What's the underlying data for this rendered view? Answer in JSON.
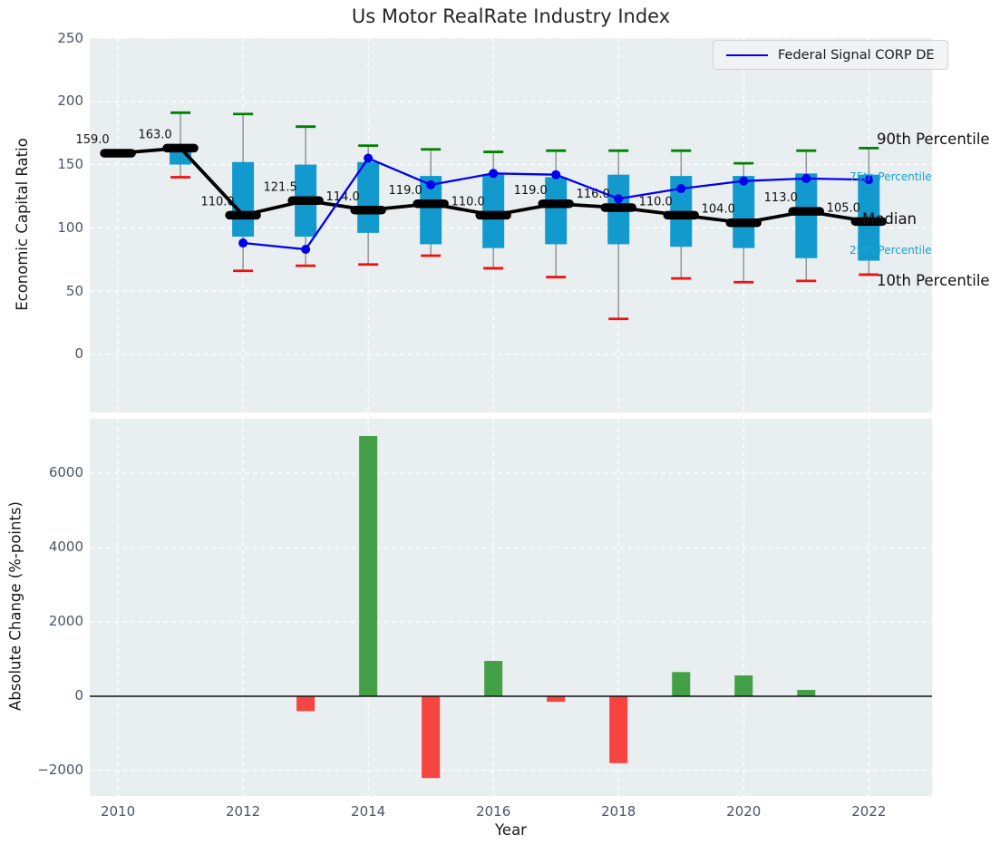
{
  "title": "Us Motor RealRate Industry Index",
  "legend": {
    "label": "Federal Signal CORP DE"
  },
  "colors": {
    "plot_bg": "#e9eef0",
    "grid": "#ffffff",
    "tick": "#4a5568",
    "box_fill": "#129ace",
    "whisker": "#7f7f7f",
    "cap_top": "#008000",
    "cap_bottom": "#ee1111",
    "median": "#000000",
    "company_line": "#0000ee",
    "bar_positive": "#43a047",
    "bar_negative": "#f64440",
    "percentile_label_small": "#17a2d6",
    "zero_line": "#111111"
  },
  "chart_data": [
    {
      "type": "box",
      "title": "Us Motor RealRate Industry Index",
      "ylabel": "Economic Capital Ratio",
      "ylim": [
        -46,
        250
      ],
      "yticks": [
        0,
        50,
        100,
        150,
        200,
        250
      ],
      "xlim": [
        2009.55,
        2023.01
      ],
      "grid_years": [
        2010,
        2012,
        2014,
        2016,
        2018,
        2020,
        2022
      ],
      "legend_entries": [
        "Federal Signal CORP DE"
      ],
      "years": [
        2010,
        2011,
        2012,
        2013,
        2014,
        2015,
        2016,
        2017,
        2018,
        2019,
        2020,
        2021,
        2022
      ],
      "p90": [
        161,
        191,
        190,
        180,
        165,
        162,
        160,
        161,
        161,
        161,
        151,
        161,
        163
      ],
      "q3": [
        160.5,
        165,
        152,
        150,
        152,
        141,
        142,
        140,
        142,
        141,
        141,
        143,
        142
      ],
      "median": [
        159.0,
        163.0,
        110.0,
        121.5,
        114.0,
        119.0,
        110.0,
        119.0,
        116.0,
        110.0,
        104.0,
        113.0,
        105.0
      ],
      "q1": [
        157.5,
        150,
        93,
        93,
        96,
        87,
        84,
        87,
        87,
        85,
        84,
        76,
        74
      ],
      "p10": [
        null,
        140,
        66,
        70,
        71,
        78,
        68,
        61,
        28,
        60,
        57,
        58,
        63
      ],
      "median_labels": [
        "159.0",
        "163.0",
        "110.0",
        "121.5",
        "114.0",
        "119.0",
        "110.0",
        "119.0",
        "116.0",
        "110.0",
        "104.0",
        "113.0",
        "105.0"
      ],
      "company": {
        "name": "Federal Signal CORP DE",
        "values": [
          null,
          null,
          88,
          83,
          155,
          134,
          143,
          142,
          123,
          131,
          137,
          139,
          138
        ]
      },
      "right_labels": [
        {
          "text": "90th Percentile",
          "value": 170,
          "style": "big",
          "x": 967
        },
        {
          "text": "75th Percentile",
          "value": 140,
          "style": "small",
          "x": 937
        },
        {
          "text": "Median",
          "value": 107,
          "style": "big",
          "x": 951
        },
        {
          "text": "25th Percentile",
          "value": 82,
          "style": "small",
          "x": 937
        },
        {
          "text": "10th Percentile",
          "value": 58,
          "style": "big",
          "x": 967
        }
      ]
    },
    {
      "type": "bar",
      "ylabel": "Absolute Change (%-points)",
      "xlabel": "Year",
      "ylim": [
        -2683,
        7463
      ],
      "yticks": [
        -2000,
        0,
        2000,
        4000,
        6000
      ],
      "ytick_labels": [
        "−2000",
        "0",
        "2000",
        "4000",
        "6000"
      ],
      "xticks": [
        2010,
        2012,
        2014,
        2016,
        2018,
        2020,
        2022
      ],
      "years": [
        2010,
        2011,
        2012,
        2013,
        2014,
        2015,
        2016,
        2017,
        2018,
        2019,
        2020,
        2021,
        2022
      ],
      "values": [
        null,
        null,
        null,
        -400,
        7000,
        -2200,
        950,
        -150,
        -1800,
        650,
        560,
        170,
        null
      ]
    }
  ]
}
